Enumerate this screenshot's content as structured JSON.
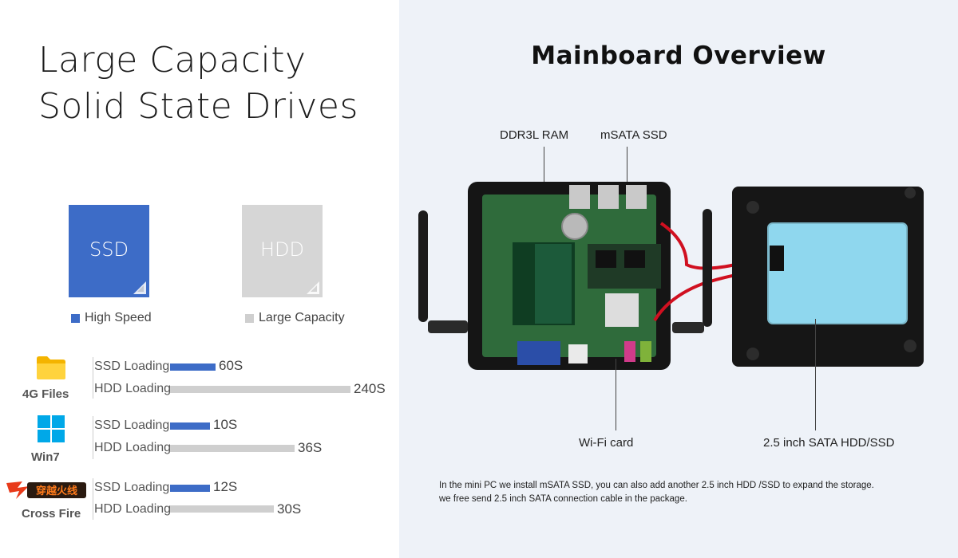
{
  "left": {
    "title_line1": "Large Capacity",
    "title_line2": "Solid State Drives",
    "ssd_card_label": "SSD",
    "hdd_card_label": "HDD",
    "legend_ssd": "High Speed",
    "legend_hdd": "Large Capacity",
    "colors": {
      "ssd": "#3d6cc7",
      "hdd": "#cfcfcf"
    },
    "groups": [
      {
        "name": "4G Files",
        "icon": "folder-icon",
        "ssd_label": "SSD Loading",
        "ssd_value": "60S",
        "ssd_seconds": 60,
        "hdd_label": "HDD Loading",
        "hdd_value": "240S",
        "hdd_seconds": 240
      },
      {
        "name": "Win7",
        "icon": "windows-logo-icon",
        "ssd_label": "SSD Loading",
        "ssd_value": "10S",
        "ssd_seconds": 10,
        "hdd_label": "HDD Loading",
        "hdd_value": "36S",
        "hdd_seconds": 36
      },
      {
        "name": "Cross Fire",
        "icon": "cross-fire-logo-icon",
        "ssd_label": "SSD Loading",
        "ssd_value": "12S",
        "ssd_seconds": 12,
        "hdd_label": "HDD Loading",
        "hdd_value": "30S",
        "hdd_seconds": 30
      }
    ],
    "crossfire_logo_text": "穿越火线"
  },
  "right": {
    "title": "Mainboard Overview",
    "callouts": {
      "ram": "DDR3L RAM",
      "msata": "mSATA SSD",
      "wifi": "Wi-Fi card",
      "sata": "2.5 inch SATA HDD/SSD"
    },
    "note_line1": "In the mini PC we install mSATA SSD, you can also add another 2.5 inch HDD /SSD to expand the storage.",
    "note_line2": "we free send 2.5 inch SATA connection cable in the package."
  }
}
